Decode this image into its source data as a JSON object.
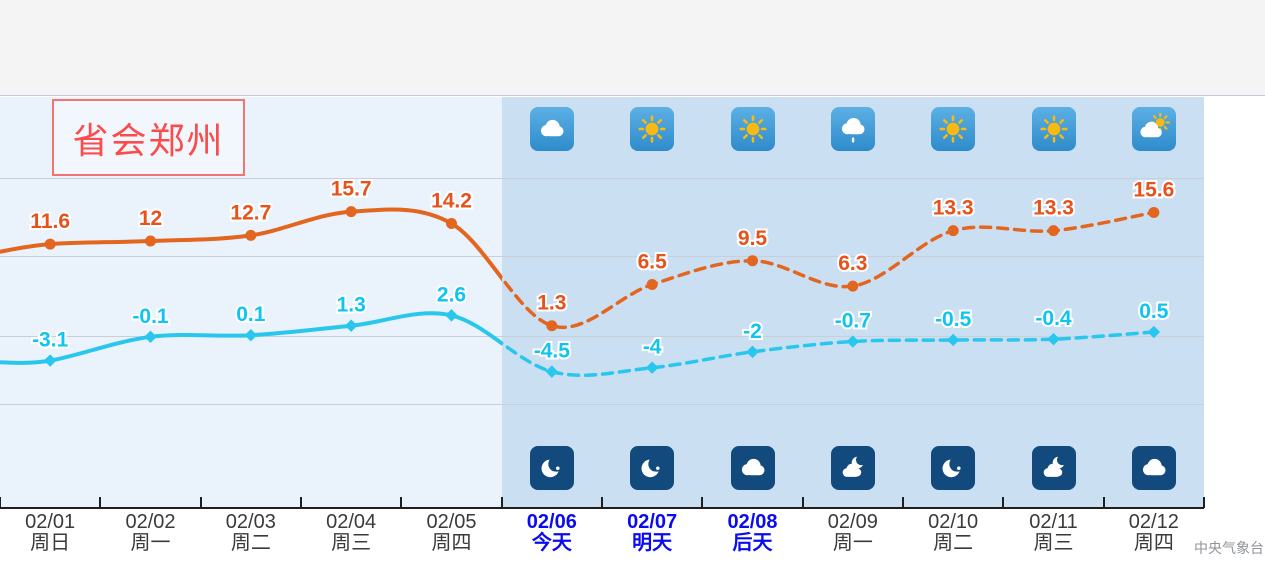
{
  "title": {
    "text": "省会郑州"
  },
  "watermark": "中央气象台",
  "colors": {
    "high_line": "#e2661f",
    "high_label": "#e8511a",
    "low_line": "#29c6ee",
    "low_label": "#0fc4f0",
    "past_background": "#eaf3fb",
    "future_background": "#cbdff2",
    "top_band": "#f4f4f5",
    "gridline": "#c9cfd8",
    "axis": "#1f1f1f",
    "date_text": "#3a3a3a",
    "date_highlight": "#0b0bf0",
    "title_red": "#fb4b4b",
    "day_tile": "#3d9ad6",
    "night_tile": "#134a7d",
    "sun_yellow": "#f8b912"
  },
  "chart_data": {
    "type": "line",
    "title": "省会郑州",
    "categories": [
      "02/01",
      "02/02",
      "02/03",
      "02/04",
      "02/05",
      "02/06",
      "02/07",
      "02/08",
      "02/09",
      "02/10",
      "02/11",
      "02/12"
    ],
    "weekdays": [
      "周日",
      "周一",
      "周二",
      "周三",
      "周四",
      "今天",
      "明天",
      "后天",
      "周一",
      "周二",
      "周三",
      "周四"
    ],
    "highlight": [
      false,
      false,
      false,
      false,
      false,
      true,
      true,
      true,
      false,
      false,
      false,
      false
    ],
    "observed_count": 5,
    "series": [
      {
        "name": "high",
        "values": [
          11.6,
          12,
          12.7,
          15.7,
          14.2,
          1.3,
          6.5,
          9.5,
          6.3,
          13.3,
          13.3,
          15.6
        ]
      },
      {
        "name": "low",
        "values": [
          -3.1,
          -0.1,
          0.1,
          1.3,
          2.6,
          -4.5,
          -4,
          -2,
          -0.7,
          -0.5,
          -0.4,
          0.5
        ]
      }
    ],
    "lead_in": {
      "high": 10.5,
      "low": -3.3
    },
    "forecast_day_icons": [
      "cloudy",
      "sunny",
      "sunny",
      "light-rain",
      "sunny",
      "sunny",
      "partly-cloudy"
    ],
    "forecast_night_icons": [
      "clear-night",
      "clear-night",
      "cloudy-night",
      "moon-cloud",
      "clear-night",
      "moon-cloud",
      "cloudy-night"
    ],
    "grid": "horizontal",
    "legend": "none",
    "style_note": "solid lines for observed days, dashed lines for forecast days"
  }
}
